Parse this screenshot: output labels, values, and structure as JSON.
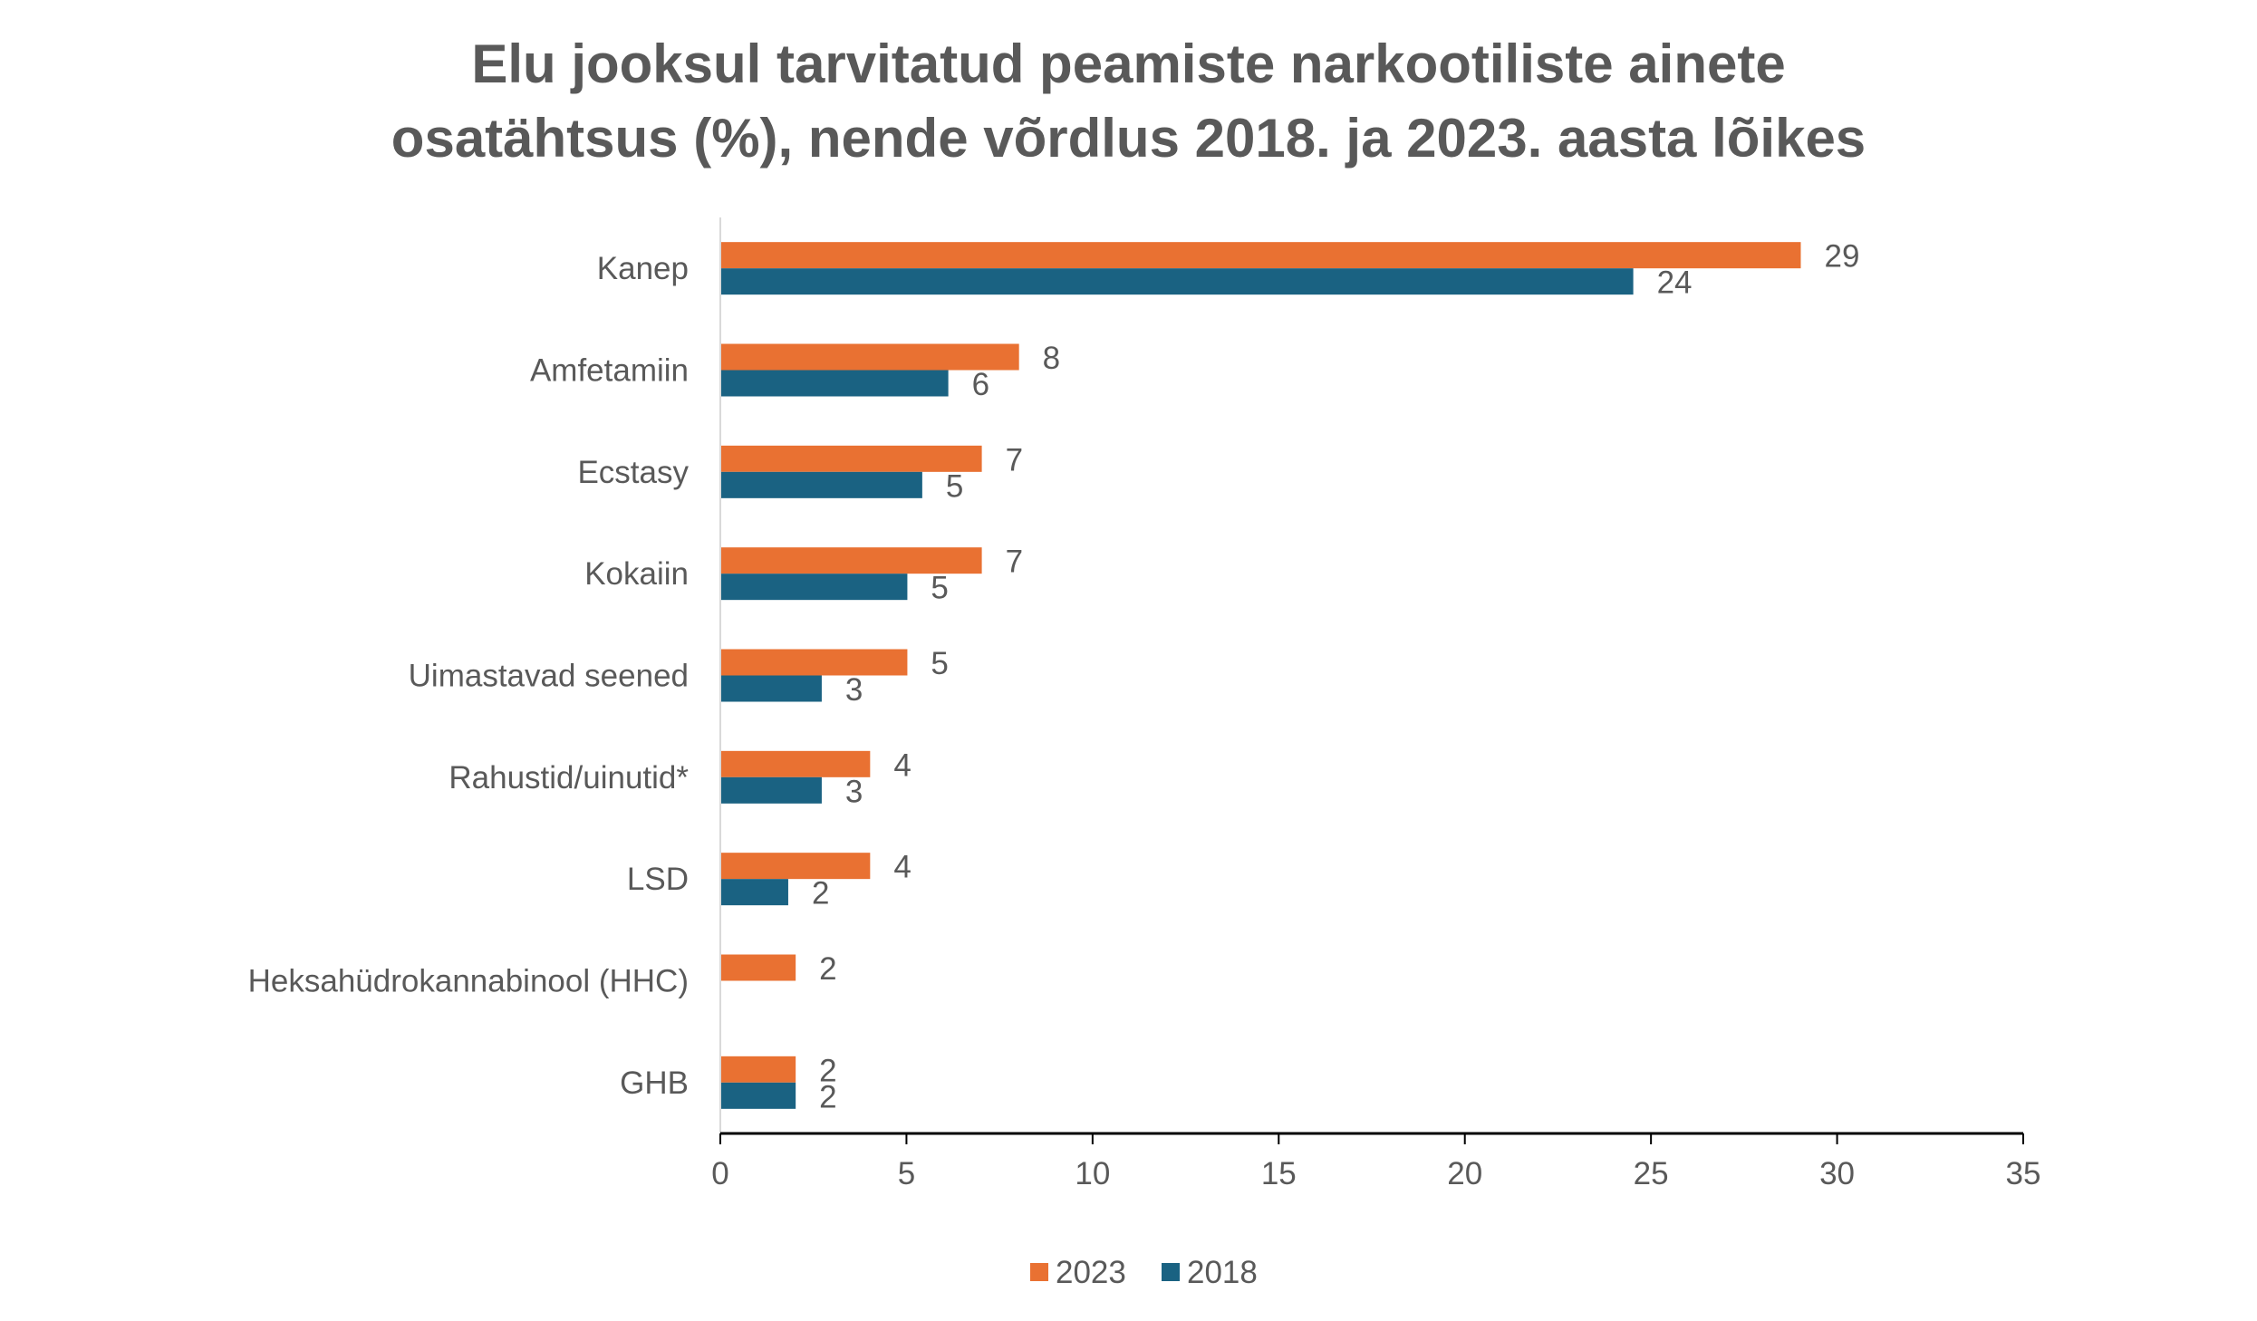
{
  "chart_data": {
    "type": "bar",
    "orientation": "horizontal",
    "title": [
      "Elu jooksul tarvitatud peamiste narkootiliste ainete",
      "osatähtsus (%), nende võrdlus 2018. ja 2023. aasta lõikes"
    ],
    "categories": [
      "Kanep",
      "Amfetamiin",
      "Ecstasy",
      "Kokaiin",
      "Uimastavad seened",
      "Rahustid/uinutid*",
      "LSD",
      "Heksahüdrokannabinool (HHC)",
      "GHB"
    ],
    "series": [
      {
        "name": "2023",
        "color": "#E97132",
        "values": [
          29,
          8,
          7,
          7,
          5,
          4,
          4,
          2,
          2
        ],
        "labels": [
          "29",
          "8",
          "7",
          "7",
          "5",
          "4",
          "4",
          "2",
          "2"
        ]
      },
      {
        "name": "2018",
        "color": "#1A6282",
        "values": [
          24.5,
          6.1,
          5.4,
          5.0,
          2.7,
          2.7,
          1.8,
          null,
          2.0
        ],
        "labels": [
          "24",
          "6",
          "5",
          "5",
          "3",
          "3",
          "2",
          "",
          "2"
        ]
      }
    ],
    "xlim": [
      0,
      35
    ],
    "xticks": [
      "0",
      "5",
      "10",
      "15",
      "20",
      "25",
      "30",
      "35"
    ],
    "grid": false,
    "legend_position": "bottom"
  }
}
